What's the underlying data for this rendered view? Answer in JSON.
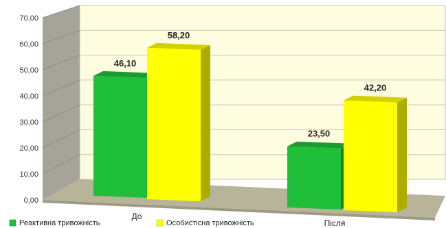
{
  "chart_data": {
    "type": "bar",
    "categories": [
      "До",
      "Після"
    ],
    "series": [
      {
        "name": "Реактивна тривожність",
        "values": [
          46.1,
          23.5
        ],
        "value_labels": [
          "46,10",
          "23,50"
        ],
        "color": "#1FBF3A"
      },
      {
        "name": "Особистісна тривожність",
        "values": [
          58.2,
          42.2
        ],
        "value_labels": [
          "58,20",
          "42,20"
        ],
        "color": "#FFFF00"
      }
    ],
    "title": "",
    "xlabel": "",
    "ylabel": "",
    "ylim": [
      0,
      70
    ],
    "yticks": [
      0,
      10,
      20,
      30,
      40,
      50,
      60,
      70
    ],
    "ytick_labels": [
      "0,00",
      "10,00",
      "20,00",
      "30,00",
      "40,00",
      "50,00",
      "60,00",
      "70,00"
    ],
    "grid": true,
    "legend_position": "bottom",
    "wall_color": "#FFFDE0",
    "floor_color": "#B8B49A",
    "side_wall_color": "#A6A49A"
  }
}
